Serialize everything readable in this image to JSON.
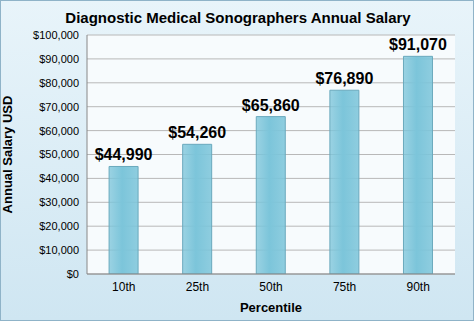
{
  "chart_data": {
    "type": "bar",
    "title": "Diagnostic Medical Sonographers Annual Salary",
    "x_label": "Percentile",
    "y_label": "Annual Salary USD",
    "categories": [
      "10th",
      "25th",
      "50th",
      "75th",
      "90th"
    ],
    "values": [
      44990,
      54260,
      65860,
      76890,
      91070
    ],
    "value_labels": [
      "$44,990",
      "$54,260",
      "$65,860",
      "$76,890",
      "$91,070"
    ],
    "data_labels": true,
    "color": "#7cc5da",
    "ylim": [
      0,
      100000
    ],
    "yticks": [
      {
        "value": 0,
        "label": "$0"
      },
      {
        "value": 10000,
        "label": "$10,000"
      },
      {
        "value": 20000,
        "label": "$20,000"
      },
      {
        "value": 30000,
        "label": "$30,000"
      },
      {
        "value": 40000,
        "label": "$40,000"
      },
      {
        "value": 50000,
        "label": "$50,000"
      },
      {
        "value": 60000,
        "label": "$60,000"
      },
      {
        "value": 70000,
        "label": "$70,000"
      },
      {
        "value": 80000,
        "label": "$80,000"
      },
      {
        "value": 90000,
        "label": "$90,000"
      },
      {
        "value": 100000,
        "label": "$100,000"
      }
    ],
    "grid": true
  }
}
